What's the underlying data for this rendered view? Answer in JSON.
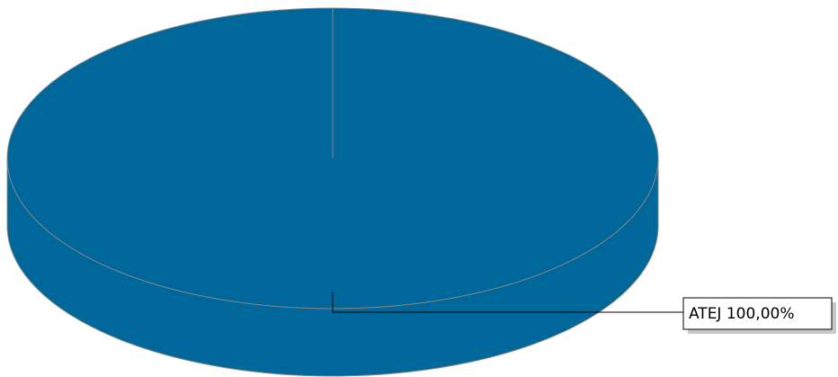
{
  "chart_data": {
    "type": "pie",
    "categories": [
      "ATEJ"
    ],
    "values": [
      100
    ],
    "value_labels": [
      "100,00%"
    ],
    "colors": [
      "#00679a"
    ]
  }
}
